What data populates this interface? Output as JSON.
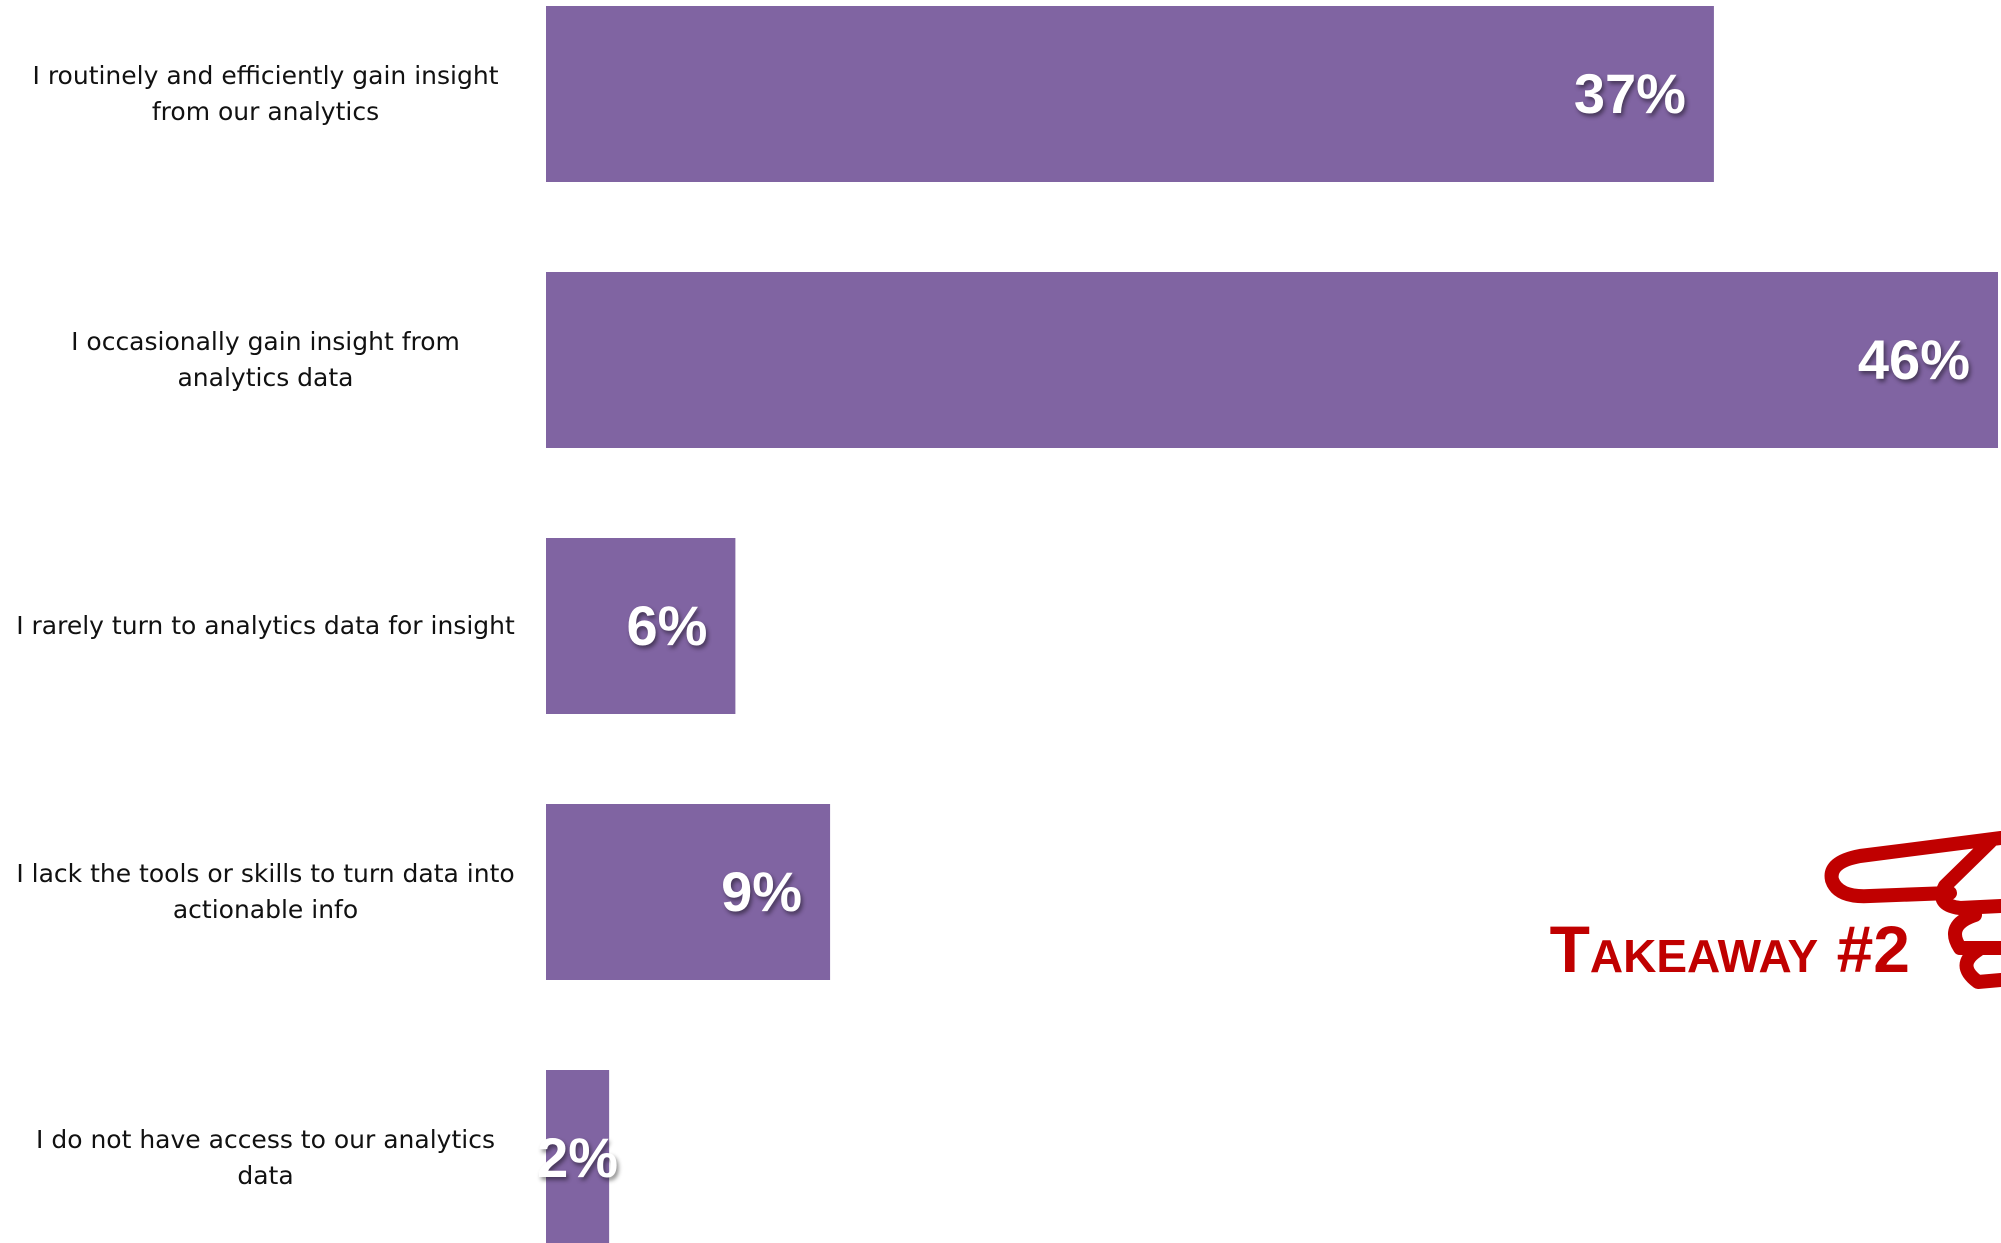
{
  "chart_data": {
    "type": "bar",
    "orientation": "horizontal",
    "categories": [
      "I routinely and efficiently gain insight from our analytics",
      "I occasionally gain insight from analytics data",
      "I rarely turn to analytics data for insight",
      "I lack the tools or skills to turn data into actionable info",
      "I do not have access to our analytics data"
    ],
    "values": [
      37,
      46,
      6,
      9,
      2
    ],
    "value_labels": [
      "37%",
      "46%",
      "6%",
      "9%",
      "2%"
    ],
    "color": "#8064a2",
    "xlim": [
      0,
      46
    ],
    "annotation": "Takeaway #2",
    "annotation_color": "#c00000"
  }
}
